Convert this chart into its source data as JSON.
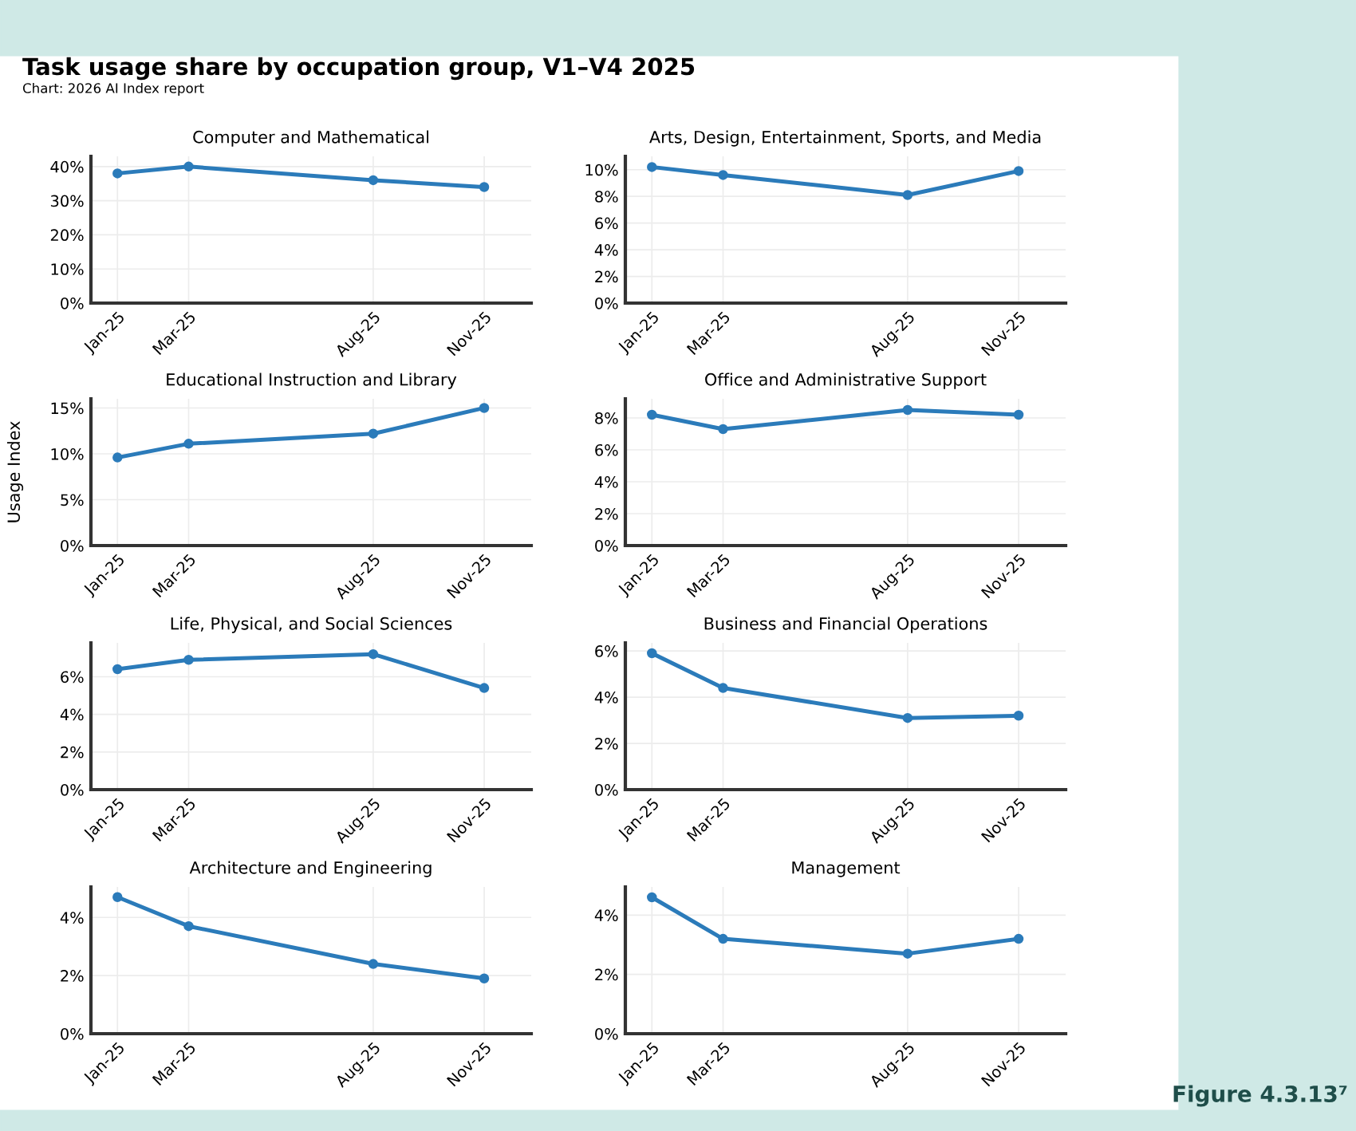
{
  "chart_data": [
    {
      "type": "line",
      "title": "Computer and Mathematical",
      "annotations": [
        "Task usage share by occupation group, V1–V4 2025",
        "Chart: 2026 AI Index report",
        "Figure 4.3.13⁷"
      ],
      "x": [
        "2025-01",
        "2025-03",
        "2025-08",
        "2025-11"
      ],
      "xlim": [
        "2024-12-10",
        "2025-12-10"
      ],
      "xticks": [
        {
          "value": "2025-01",
          "label": "Jan-25"
        },
        {
          "value": "2025-03",
          "label": "Mar-25"
        },
        {
          "value": "2025-08",
          "label": "Aug-25"
        },
        {
          "value": "2025-11",
          "label": "Nov-25"
        }
      ],
      "ylim": [
        0,
        43
      ],
      "yticks": [
        {
          "value": 0,
          "label": "0%"
        },
        {
          "value": 10,
          "label": "10%"
        },
        {
          "value": 20,
          "label": "20%"
        },
        {
          "value": 30,
          "label": "30%"
        },
        {
          "value": 40,
          "label": "40%"
        }
      ],
      "grid": true,
      "marker": "circle",
      "series": [
        {
          "color": "#2b7bba",
          "values": [
            38,
            40,
            36,
            34
          ]
        }
      ]
    },
    {
      "type": "line",
      "title": "Arts, Design, Entertainment, Sports, and Media",
      "x": [
        "2025-01",
        "2025-03",
        "2025-08",
        "2025-11"
      ],
      "xlim": [
        "2024-12-10",
        "2025-12-10"
      ],
      "xticks": [
        {
          "value": "2025-01",
          "label": "Jan-25"
        },
        {
          "value": "2025-03",
          "label": "Mar-25"
        },
        {
          "value": "2025-08",
          "label": "Aug-25"
        },
        {
          "value": "2025-11",
          "label": "Nov-25"
        }
      ],
      "ylim": [
        0,
        11
      ],
      "yticks": [
        {
          "value": 0,
          "label": "0%"
        },
        {
          "value": 2,
          "label": "2%"
        },
        {
          "value": 4,
          "label": "4%"
        },
        {
          "value": 6,
          "label": "6%"
        },
        {
          "value": 8,
          "label": "8%"
        },
        {
          "value": 10,
          "label": "10%"
        }
      ],
      "grid": true,
      "marker": "circle",
      "series": [
        {
          "color": "#2b7bba",
          "values": [
            10.2,
            9.6,
            8.1,
            9.9
          ]
        }
      ]
    },
    {
      "type": "line",
      "title": "Educational Instruction and Library",
      "ylabel": "Usage Index",
      "x": [
        "2025-01",
        "2025-03",
        "2025-08",
        "2025-11"
      ],
      "xlim": [
        "2024-12-10",
        "2025-12-10"
      ],
      "xticks": [
        {
          "value": "2025-01",
          "label": "Jan-25"
        },
        {
          "value": "2025-03",
          "label": "Mar-25"
        },
        {
          "value": "2025-08",
          "label": "Aug-25"
        },
        {
          "value": "2025-11",
          "label": "Nov-25"
        }
      ],
      "ylim": [
        0,
        16
      ],
      "yticks": [
        {
          "value": 0,
          "label": "0%"
        },
        {
          "value": 5,
          "label": "5%"
        },
        {
          "value": 10,
          "label": "10%"
        },
        {
          "value": 15,
          "label": "15%"
        }
      ],
      "grid": true,
      "marker": "circle",
      "series": [
        {
          "color": "#2b7bba",
          "values": [
            9.6,
            11.1,
            12.2,
            15.0
          ]
        }
      ]
    },
    {
      "type": "line",
      "title": "Office and Administrative Support",
      "x": [
        "2025-01",
        "2025-03",
        "2025-08",
        "2025-11"
      ],
      "xlim": [
        "2024-12-10",
        "2025-12-10"
      ],
      "xticks": [
        {
          "value": "2025-01",
          "label": "Jan-25"
        },
        {
          "value": "2025-03",
          "label": "Mar-25"
        },
        {
          "value": "2025-08",
          "label": "Aug-25"
        },
        {
          "value": "2025-11",
          "label": "Nov-25"
        }
      ],
      "ylim": [
        0,
        9.2
      ],
      "yticks": [
        {
          "value": 0,
          "label": "0%"
        },
        {
          "value": 2,
          "label": "2%"
        },
        {
          "value": 4,
          "label": "4%"
        },
        {
          "value": 6,
          "label": "6%"
        },
        {
          "value": 8,
          "label": "8%"
        }
      ],
      "grid": true,
      "marker": "circle",
      "series": [
        {
          "color": "#2b7bba",
          "values": [
            8.2,
            7.3,
            8.5,
            8.2
          ]
        }
      ]
    },
    {
      "type": "line",
      "title": "Life, Physical, and Social Sciences",
      "x": [
        "2025-01",
        "2025-03",
        "2025-08",
        "2025-11"
      ],
      "xlim": [
        "2024-12-10",
        "2025-12-10"
      ],
      "xticks": [
        {
          "value": "2025-01",
          "label": "Jan-25"
        },
        {
          "value": "2025-03",
          "label": "Mar-25"
        },
        {
          "value": "2025-08",
          "label": "Aug-25"
        },
        {
          "value": "2025-11",
          "label": "Nov-25"
        }
      ],
      "ylim": [
        0,
        7.8
      ],
      "yticks": [
        {
          "value": 0,
          "label": "0%"
        },
        {
          "value": 2,
          "label": "2%"
        },
        {
          "value": 4,
          "label": "4%"
        },
        {
          "value": 6,
          "label": "6%"
        }
      ],
      "grid": true,
      "marker": "circle",
      "series": [
        {
          "color": "#2b7bba",
          "values": [
            6.4,
            6.9,
            7.2,
            5.4
          ]
        }
      ]
    },
    {
      "type": "line",
      "title": "Business and Financial Operations",
      "x": [
        "2025-01",
        "2025-03",
        "2025-08",
        "2025-11"
      ],
      "xlim": [
        "2024-12-10",
        "2025-12-10"
      ],
      "xticks": [
        {
          "value": "2025-01",
          "label": "Jan-25"
        },
        {
          "value": "2025-03",
          "label": "Mar-25"
        },
        {
          "value": "2025-08",
          "label": "Aug-25"
        },
        {
          "value": "2025-11",
          "label": "Nov-25"
        }
      ],
      "ylim": [
        0,
        6.35
      ],
      "yticks": [
        {
          "value": 0,
          "label": "0%"
        },
        {
          "value": 2,
          "label": "2%"
        },
        {
          "value": 4,
          "label": "4%"
        },
        {
          "value": 6,
          "label": "6%"
        }
      ],
      "grid": true,
      "marker": "circle",
      "series": [
        {
          "color": "#2b7bba",
          "values": [
            5.9,
            4.4,
            3.1,
            3.2
          ]
        }
      ]
    },
    {
      "type": "line",
      "title": "Architecture and Engineering",
      "x": [
        "2025-01",
        "2025-03",
        "2025-08",
        "2025-11"
      ],
      "xlim": [
        "2024-12-10",
        "2025-12-10"
      ],
      "xticks": [
        {
          "value": "2025-01",
          "label": "Jan-25"
        },
        {
          "value": "2025-03",
          "label": "Mar-25"
        },
        {
          "value": "2025-08",
          "label": "Aug-25"
        },
        {
          "value": "2025-11",
          "label": "Nov-25"
        }
      ],
      "ylim": [
        0,
        5.05
      ],
      "yticks": [
        {
          "value": 0,
          "label": "0%"
        },
        {
          "value": 2,
          "label": "2%"
        },
        {
          "value": 4,
          "label": "4%"
        }
      ],
      "grid": true,
      "marker": "circle",
      "series": [
        {
          "color": "#2b7bba",
          "values": [
            4.7,
            3.7,
            2.4,
            1.9
          ]
        }
      ]
    },
    {
      "type": "line",
      "title": "Management",
      "x": [
        "2025-01",
        "2025-03",
        "2025-08",
        "2025-11"
      ],
      "xlim": [
        "2024-12-10",
        "2025-12-10"
      ],
      "xticks": [
        {
          "value": "2025-01",
          "label": "Jan-25"
        },
        {
          "value": "2025-03",
          "label": "Mar-25"
        },
        {
          "value": "2025-08",
          "label": "Aug-25"
        },
        {
          "value": "2025-11",
          "label": "Nov-25"
        }
      ],
      "ylim": [
        0,
        4.95
      ],
      "yticks": [
        {
          "value": 0,
          "label": "0%"
        },
        {
          "value": 2,
          "label": "2%"
        },
        {
          "value": 4,
          "label": "4%"
        }
      ],
      "grid": true,
      "marker": "circle",
      "series": [
        {
          "color": "#2b7bba",
          "values": [
            4.6,
            3.2,
            2.7,
            3.2
          ]
        }
      ]
    }
  ]
}
